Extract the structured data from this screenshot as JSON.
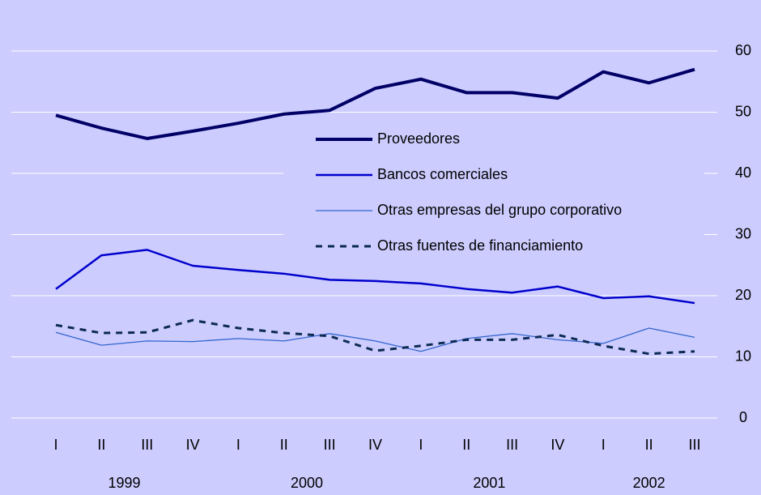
{
  "chart_data": {
    "type": "line",
    "categories": [
      "I",
      "II",
      "III",
      "IV",
      "I",
      "II",
      "III",
      "IV",
      "I",
      "II",
      "III",
      "IV",
      "I",
      "II",
      "III"
    ],
    "year_labels": [
      "1999",
      "2000",
      "2001",
      "2002"
    ],
    "ylim": [
      0,
      60
    ],
    "yticks": [
      0,
      10,
      20,
      30,
      40,
      50,
      60
    ],
    "grid": true,
    "legend": "center",
    "series": [
      {
        "name": "Proveedores",
        "color": "#000066",
        "values": [
          49.5,
          47.4,
          45.7,
          46.9,
          48.2,
          49.7,
          50.3,
          53.9,
          55.4,
          53.2,
          53.2,
          52.3,
          56.6,
          54.8,
          57.0
        ]
      },
      {
        "name": "Bancos comerciales",
        "color": "#0000cc",
        "values": [
          21.1,
          26.6,
          27.5,
          24.9,
          24.2,
          23.6,
          22.6,
          22.4,
          22.0,
          21.1,
          20.5,
          21.5,
          19.6,
          19.9,
          18.8
        ]
      },
      {
        "name": "Otras empresas del grupo corporativo",
        "color": "#3366cc",
        "values": [
          14.0,
          11.9,
          12.6,
          12.5,
          13.0,
          12.6,
          13.8,
          12.6,
          10.9,
          13.0,
          13.8,
          12.8,
          12.2,
          14.7,
          13.2
        ]
      },
      {
        "name": "Otras fuentes de financiamiento",
        "color": "#0d2a55",
        "dashed": true,
        "values": [
          15.2,
          13.9,
          14.0,
          16.0,
          14.7,
          13.9,
          13.4,
          11.0,
          11.8,
          12.8,
          12.8,
          13.6,
          11.8,
          10.5,
          10.9
        ]
      }
    ]
  }
}
